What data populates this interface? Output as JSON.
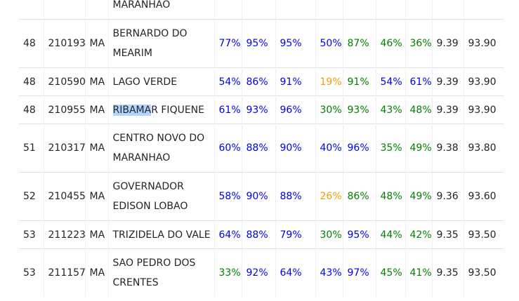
{
  "colors": {
    "blue": "#0000ee",
    "green": "#008000",
    "orange": "#f0a000"
  },
  "partial_row": {
    "name": "MARANHAO"
  },
  "rows": [
    {
      "rank": "48",
      "code": "210193",
      "uf": "MA",
      "name": "BERNARDO DO MEARIM",
      "v": [
        "77%",
        "95%",
        "95%",
        "50%",
        "87%",
        "46%",
        "36%"
      ],
      "c": [
        "blue",
        "blue",
        "blue",
        "blue",
        "green",
        "green",
        "green"
      ],
      "score": "9.39",
      "total": "93.90"
    },
    {
      "rank": "48",
      "code": "210590",
      "uf": "MA",
      "name": "LAGO VERDE",
      "v": [
        "54%",
        "86%",
        "91%",
        "19%",
        "91%",
        "54%",
        "61%"
      ],
      "c": [
        "blue",
        "blue",
        "blue",
        "orange",
        "green",
        "blue",
        "blue"
      ],
      "score": "9.39",
      "total": "93.90"
    },
    {
      "rank": "48",
      "code": "210955",
      "uf": "MA",
      "name_hl": "RIBAMA",
      "name_rest": "R FIQUENE",
      "v": [
        "61%",
        "93%",
        "96%",
        "30%",
        "93%",
        "43%",
        "48%"
      ],
      "c": [
        "blue",
        "blue",
        "blue",
        "green",
        "green",
        "green",
        "green"
      ],
      "score": "9.39",
      "total": "93.90"
    },
    {
      "rank": "51",
      "code": "210317",
      "uf": "MA",
      "name": "CENTRO NOVO DO MARANHAO",
      "v": [
        "60%",
        "88%",
        "90%",
        "40%",
        "96%",
        "35%",
        "49%"
      ],
      "c": [
        "blue",
        "blue",
        "blue",
        "blue",
        "blue",
        "green",
        "green"
      ],
      "score": "9.38",
      "total": "93.80"
    },
    {
      "rank": "52",
      "code": "210455",
      "uf": "MA",
      "name": "GOVERNADOR EDISON LOBAO",
      "v": [
        "58%",
        "90%",
        "88%",
        "26%",
        "86%",
        "48%",
        "49%"
      ],
      "c": [
        "blue",
        "blue",
        "blue",
        "orange",
        "green",
        "green",
        "green"
      ],
      "score": "9.36",
      "total": "93.60"
    },
    {
      "rank": "53",
      "code": "211223",
      "uf": "MA",
      "name": "TRIZIDELA DO VALE",
      "v": [
        "64%",
        "88%",
        "79%",
        "30%",
        "95%",
        "44%",
        "42%"
      ],
      "c": [
        "blue",
        "blue",
        "blue",
        "green",
        "blue",
        "green",
        "green"
      ],
      "score": "9.35",
      "total": "93.50"
    },
    {
      "rank": "53",
      "code": "211157",
      "uf": "MA",
      "name": "SAO PEDRO DOS CRENTES",
      "v": [
        "33%",
        "92%",
        "64%",
        "43%",
        "97%",
        "45%",
        "41%"
      ],
      "c": [
        "green",
        "blue",
        "blue",
        "blue",
        "blue",
        "green",
        "green"
      ],
      "score": "9.35",
      "total": "93.50"
    }
  ]
}
